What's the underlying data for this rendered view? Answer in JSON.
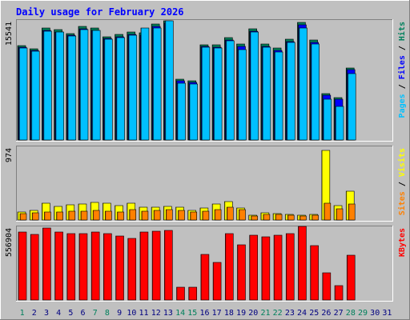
{
  "chart_data": {
    "type": "bar",
    "title": "Daily usage for February 2026",
    "days": [
      "1",
      "2",
      "3",
      "4",
      "5",
      "6",
      "7",
      "8",
      "9",
      "10",
      "11",
      "12",
      "13",
      "14",
      "15",
      "16",
      "17",
      "18",
      "19",
      "20",
      "21",
      "22",
      "23",
      "24",
      "25",
      "26",
      "27",
      "28",
      "29",
      "30",
      "31"
    ],
    "weekend_days": [
      1,
      7,
      8,
      14,
      15,
      21,
      22,
      28,
      29
    ],
    "colors": {
      "hits": "#00805c",
      "files": "#0000ff",
      "pages": "#00c0ff",
      "visits": "#ffff00",
      "sites": "#ff8000",
      "kbytes": "#ff0000",
      "weekend": "#00805c",
      "weekday": "#000080",
      "title": "#0000ff"
    },
    "panels": [
      {
        "id": "top",
        "max_label": "15541",
        "ymax": 15541,
        "axis_text": [
          {
            "text": "Pages",
            "color": "#00c0ff"
          },
          {
            "text": " / ",
            "color": "#000000"
          },
          {
            "text": "Files",
            "color": "#0000ff"
          },
          {
            "text": " / ",
            "color": "#000000"
          },
          {
            "text": "Hits",
            "color": "#00805c"
          }
        ],
        "series": [
          {
            "name": "Hits",
            "color": "#00805c",
            "values": [
              12300,
              11900,
              14600,
              14400,
              13900,
              14800,
              14600,
              13500,
              13800,
              14100,
              14000,
              15100,
              15500,
              7900,
              7700,
              12400,
              12400,
              13300,
              12500,
              14500,
              12500,
              12000,
              13100,
              15300,
              13000,
              6000,
              5500,
              9400,
              0,
              0,
              0
            ]
          },
          {
            "name": "Files",
            "color": "#0000ff",
            "values": [
              12100,
              11700,
              14300,
              14100,
              13700,
              14500,
              14300,
              13200,
              13500,
              13800,
              13700,
              14800,
              15200,
              7700,
              7500,
              12200,
              12100,
              13000,
              12200,
              14200,
              12200,
              11700,
              12800,
              15000,
              12700,
              5800,
              5300,
              9200,
              0,
              0,
              0
            ]
          },
          {
            "name": "Pages",
            "color": "#00c0ff",
            "values": [
              12000,
              11600,
              14200,
              14100,
              13600,
              14400,
              14300,
              13100,
              13400,
              13700,
              14600,
              14600,
              15500,
              7400,
              7300,
              12100,
              12000,
              12900,
              11800,
              14100,
              12100,
              11500,
              12700,
              14600,
              12500,
              5300,
              4400,
              8700,
              0,
              0,
              0
            ]
          }
        ]
      },
      {
        "id": "mid",
        "max_label": "974",
        "ymax": 974,
        "axis_text": [
          {
            "text": "Sites",
            "color": "#ff8000"
          },
          {
            "text": " / ",
            "color": "#000000"
          },
          {
            "text": "Visits",
            "color": "#ffff00"
          }
        ],
        "series": [
          {
            "name": "Visits",
            "color": "#ffff00",
            "values": [
              110,
              130,
              220,
              180,
              200,
              210,
              240,
              220,
              190,
              230,
              170,
              170,
              180,
              170,
              130,
              160,
              210,
              250,
              160,
              60,
              100,
              90,
              80,
              60,
              70,
              930,
              190,
              390,
              0,
              0,
              0
            ]
          },
          {
            "name": "Sites",
            "color": "#ff8000",
            "values": [
              90,
              100,
              110,
              110,
              120,
              120,
              130,
              120,
              110,
              140,
              120,
              130,
              140,
              130,
              110,
              120,
              140,
              170,
              140,
              50,
              70,
              70,
              60,
              50,
              60,
              230,
              150,
              210,
              0,
              0,
              0
            ]
          }
        ]
      },
      {
        "id": "bottom",
        "max_label": "556904",
        "ymax": 556904,
        "axis_text": [
          {
            "text": "KBytes",
            "color": "#ff0000"
          }
        ],
        "series": [
          {
            "name": "KBytes",
            "color": "#ff0000",
            "values": [
              520000,
              500000,
              548000,
              520000,
              505000,
              510000,
              520000,
              505000,
              490000,
              470000,
              520000,
              525000,
              530000,
              100000,
              100000,
              350000,
              290000,
              505000,
              425000,
              495000,
              485000,
              495000,
              505000,
              560000,
              415000,
              210000,
              110000,
              340000,
              0,
              0,
              0
            ]
          }
        ]
      }
    ]
  }
}
